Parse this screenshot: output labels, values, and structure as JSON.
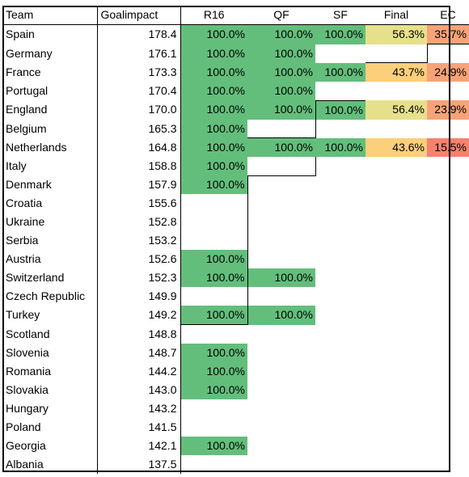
{
  "headers": [
    "Team",
    "Goalimpact",
    "R16",
    "QF",
    "SF",
    "Final",
    "EC"
  ],
  "rows": [
    {
      "team": "Spain",
      "gi": "178.4",
      "r16": "100.0%",
      "qf": "100.0%",
      "sf": "100.0%",
      "final": "56.3%",
      "ec": "35.7%"
    },
    {
      "team": "Germany",
      "gi": "176.1",
      "r16": "100.0%",
      "qf": "100.0%",
      "sf": "",
      "final": "",
      "ec": ""
    },
    {
      "team": "France",
      "gi": "173.3",
      "r16": "100.0%",
      "qf": "100.0%",
      "sf": "100.0%",
      "final": "43.7%",
      "ec": "24.9%"
    },
    {
      "team": "Portugal",
      "gi": "170.4",
      "r16": "100.0%",
      "qf": "100.0%",
      "sf": "",
      "final": "",
      "ec": ""
    },
    {
      "team": "England",
      "gi": "170.0",
      "r16": "100.0%",
      "qf": "100.0%",
      "sf": "100.0%",
      "final": "56.4%",
      "ec": "23.9%"
    },
    {
      "team": "Belgium",
      "gi": "165.3",
      "r16": "100.0%",
      "qf": "",
      "sf": "",
      "final": "",
      "ec": ""
    },
    {
      "team": "Netherlands",
      "gi": "164.8",
      "r16": "100.0%",
      "qf": "100.0%",
      "sf": "100.0%",
      "final": "43.6%",
      "ec": "15.5%"
    },
    {
      "team": "Italy",
      "gi": "158.8",
      "r16": "100.0%",
      "qf": "",
      "sf": "",
      "final": "",
      "ec": ""
    },
    {
      "team": "Denmark",
      "gi": "157.9",
      "r16": "100.0%",
      "qf": "",
      "sf": "",
      "final": "",
      "ec": ""
    },
    {
      "team": "Croatia",
      "gi": "155.6",
      "r16": "",
      "qf": "",
      "sf": "",
      "final": "",
      "ec": ""
    },
    {
      "team": "Ukraine",
      "gi": "152.8",
      "r16": "",
      "qf": "",
      "sf": "",
      "final": "",
      "ec": ""
    },
    {
      "team": "Serbia",
      "gi": "153.2",
      "r16": "",
      "qf": "",
      "sf": "",
      "final": "",
      "ec": ""
    },
    {
      "team": "Austria",
      "gi": "152.6",
      "r16": "100.0%",
      "qf": "",
      "sf": "",
      "final": "",
      "ec": ""
    },
    {
      "team": "Switzerland",
      "gi": "152.3",
      "r16": "100.0%",
      "qf": "100.0%",
      "sf": "",
      "final": "",
      "ec": ""
    },
    {
      "team": "Czech Republic",
      "gi": "149.9",
      "r16": "",
      "qf": "",
      "sf": "",
      "final": "",
      "ec": ""
    },
    {
      "team": "Turkey",
      "gi": "149.2",
      "r16": "100.0%",
      "qf": "100.0%",
      "sf": "",
      "final": "",
      "ec": ""
    },
    {
      "team": "Scotland",
      "gi": "148.8",
      "r16": "",
      "qf": "",
      "sf": "",
      "final": "",
      "ec": ""
    },
    {
      "team": "Slovenia",
      "gi": "148.7",
      "r16": "100.0%",
      "qf": "",
      "sf": "",
      "final": "",
      "ec": ""
    },
    {
      "team": "Romania",
      "gi": "144.2",
      "r16": "100.0%",
      "qf": "",
      "sf": "",
      "final": "",
      "ec": ""
    },
    {
      "team": "Slovakia",
      "gi": "143.0",
      "r16": "100.0%",
      "qf": "",
      "sf": "",
      "final": "",
      "ec": ""
    },
    {
      "team": "Hungary",
      "gi": "143.2",
      "r16": "",
      "qf": "",
      "sf": "",
      "final": "",
      "ec": ""
    },
    {
      "team": "Poland",
      "gi": "141.5",
      "r16": "",
      "qf": "",
      "sf": "",
      "final": "",
      "ec": ""
    },
    {
      "team": "Georgia",
      "gi": "142.1",
      "r16": "100.0%",
      "qf": "",
      "sf": "",
      "final": "",
      "ec": ""
    },
    {
      "team": "Albania",
      "gi": "137.5",
      "r16": "",
      "qf": "",
      "sf": "",
      "final": "",
      "ec": ""
    }
  ],
  "colors": {
    "green": "#63be7b",
    "yellow": "#e6e08a",
    "orange": "#fccf7a",
    "salmon": "#f8a278",
    "red": "#f4826f"
  }
}
